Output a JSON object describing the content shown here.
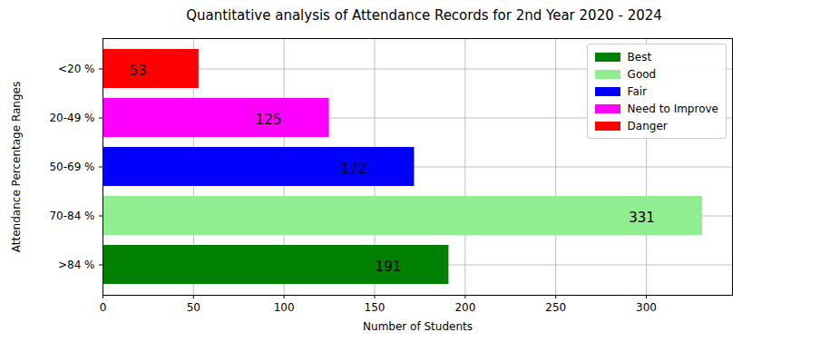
{
  "chart_data": {
    "type": "bar",
    "orientation": "horizontal",
    "title": "Quantitative analysis of Attendance Records for 2nd Year 2020 - 2024",
    "x_label": "Number of Students",
    "y_label": "Attendance Percentage Ranges",
    "categories": [
      ">84 %",
      "70-84 %",
      "50-69 %",
      "20-49 %",
      "<20 %"
    ],
    "series": [
      {
        "name": "Best",
        "color": "#008000",
        "values": [
          191,
          null,
          null,
          null,
          null
        ]
      },
      {
        "name": "Good",
        "color": "#90ee90",
        "values": [
          null,
          331,
          null,
          null,
          null
        ]
      },
      {
        "name": "Fair",
        "color": "#0000ff",
        "values": [
          null,
          null,
          172,
          null,
          null
        ]
      },
      {
        "name": "Need to Improve",
        "color": "#ff00ff",
        "values": [
          null,
          null,
          null,
          125,
          null
        ]
      },
      {
        "name": "Danger",
        "color": "#ff0000",
        "values": [
          null,
          null,
          null,
          null,
          53
        ]
      }
    ],
    "xlim": [
      0,
      347.55
    ],
    "xticks": [
      0,
      50,
      100,
      150,
      200,
      250,
      300
    ],
    "grid": true,
    "legend": "upper right",
    "data_labels": true
  }
}
